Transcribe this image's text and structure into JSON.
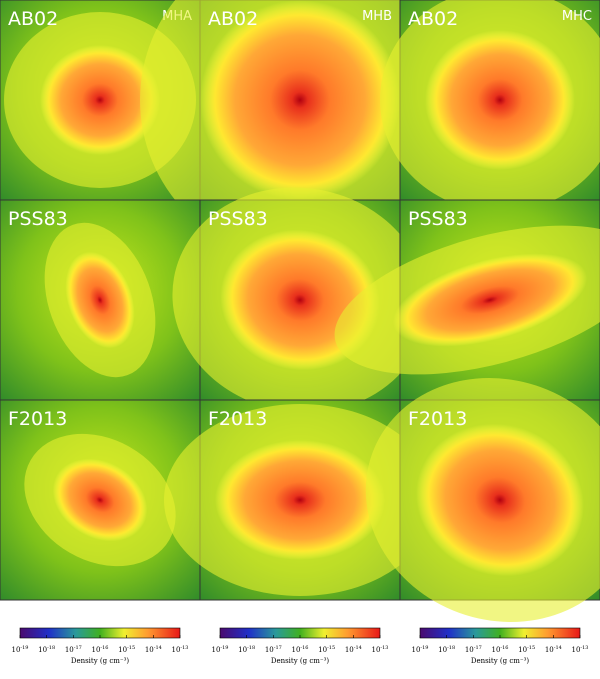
{
  "panels": {
    "row_labels": [
      "AB02",
      "PSS83",
      "F2013"
    ],
    "column_labels": [
      "MHA",
      "MHB",
      "MHC"
    ]
  },
  "colorbars": [
    {
      "ticks": [
        {
          "base": "10",
          "exp": "-19"
        },
        {
          "base": "10",
          "exp": "-18"
        },
        {
          "base": "10",
          "exp": "-17"
        },
        {
          "base": "10",
          "exp": "-16"
        },
        {
          "base": "10",
          "exp": "-15"
        },
        {
          "base": "10",
          "exp": "-14"
        },
        {
          "base": "10",
          "exp": "-13"
        }
      ],
      "label": "Density (g cm⁻³)"
    },
    {
      "ticks": [
        {
          "base": "10",
          "exp": "-19"
        },
        {
          "base": "10",
          "exp": "-18"
        },
        {
          "base": "10",
          "exp": "-17"
        },
        {
          "base": "10",
          "exp": "-16"
        },
        {
          "base": "10",
          "exp": "-15"
        },
        {
          "base": "10",
          "exp": "-14"
        },
        {
          "base": "10",
          "exp": "-13"
        }
      ],
      "label": "Density (g cm⁻³)"
    },
    {
      "ticks": [
        {
          "base": "10",
          "exp": "-19"
        },
        {
          "base": "10",
          "exp": "-18"
        },
        {
          "base": "10",
          "exp": "-17"
        },
        {
          "base": "10",
          "exp": "-16"
        },
        {
          "base": "10",
          "exp": "-15"
        },
        {
          "base": "10",
          "exp": "-14"
        },
        {
          "base": "10",
          "exp": "-13"
        }
      ],
      "label": "Density (g cm⁻³)"
    }
  ]
}
